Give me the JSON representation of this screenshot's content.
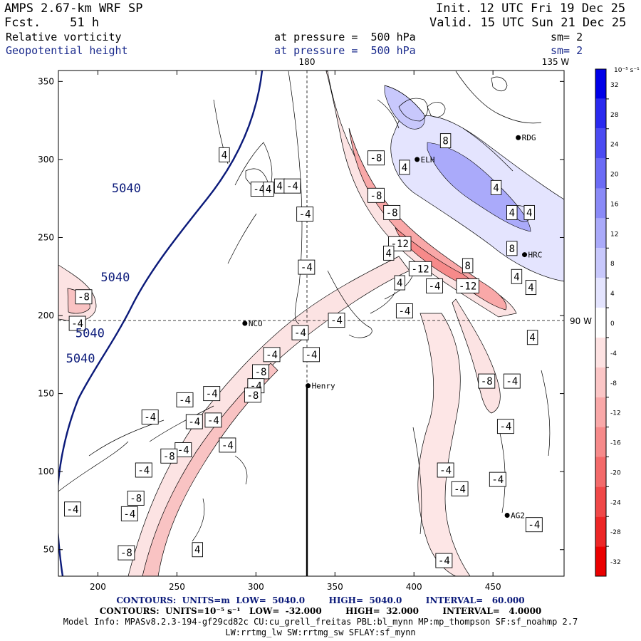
{
  "header": {
    "model": "AMPS 2.67-km WRF SP",
    "forecast": "Fcst.    51 h",
    "init": "Init. 12 UTC Fri 19 Dec 25",
    "valid": "Valid. 15 UTC Sun 21 Dec 25",
    "field1": "Relative vorticity",
    "field2": "Geopotential height",
    "pressure1": "at pressure =  500 hPa",
    "pressure2": "at pressure =  500 hPa",
    "smooth1": "sm= 2",
    "smooth2": "sm= 2"
  },
  "map": {
    "meridian_label": "180",
    "meridian_135_label": "135 W",
    "meridian_90_label": "90 W",
    "x_ticks": [
      200,
      250,
      300,
      350,
      400,
      450
    ],
    "y_ticks": [
      50,
      100,
      150,
      200,
      250,
      300,
      350
    ],
    "x_range": [
      175,
      495
    ],
    "y_range": [
      33,
      357
    ],
    "stations": [
      {
        "name": "RDG",
        "x": 466,
        "y": 314
      },
      {
        "name": "ELH",
        "x": 402,
        "y": 300
      },
      {
        "name": "HRC",
        "x": 470,
        "y": 239
      },
      {
        "name": "NCO",
        "x": 293,
        "y": 195
      },
      {
        "name": "Henry",
        "x": 333,
        "y": 155
      },
      {
        "name": "AG2",
        "x": 459,
        "y": 72
      }
    ],
    "height_labels": [
      {
        "text": "5040",
        "x": 218,
        "y": 279
      },
      {
        "text": "5040",
        "x": 211,
        "y": 222
      },
      {
        "text": "5040",
        "x": 195,
        "y": 186
      },
      {
        "text": "5040",
        "x": 189,
        "y": 170
      }
    ],
    "vort_labels": [
      {
        "t": "4",
        "x": 280,
        "y": 303
      },
      {
        "t": "-4",
        "x": 302,
        "y": 281
      },
      {
        "t": "4",
        "x": 308,
        "y": 281
      },
      {
        "t": "4",
        "x": 315,
        "y": 283
      },
      {
        "t": "-4",
        "x": 323,
        "y": 283
      },
      {
        "t": "-4",
        "x": 331,
        "y": 265
      },
      {
        "t": "-4",
        "x": 332,
        "y": 231
      },
      {
        "t": "-8",
        "x": 191,
        "y": 212
      },
      {
        "t": "-4",
        "x": 187,
        "y": 195
      },
      {
        "t": "-4",
        "x": 328,
        "y": 189
      },
      {
        "t": "-4",
        "x": 335,
        "y": 175
      },
      {
        "t": "-4",
        "x": 310,
        "y": 175
      },
      {
        "t": "-8",
        "x": 303,
        "y": 164
      },
      {
        "t": "-4",
        "x": 300,
        "y": 155
      },
      {
        "t": "-8",
        "x": 298,
        "y": 149
      },
      {
        "t": "-4",
        "x": 272,
        "y": 150
      },
      {
        "t": "-4",
        "x": 255,
        "y": 146
      },
      {
        "t": "-4",
        "x": 233,
        "y": 135
      },
      {
        "t": "-4",
        "x": 261,
        "y": 132
      },
      {
        "t": "-4",
        "x": 273,
        "y": 133
      },
      {
        "t": "-4",
        "x": 282,
        "y": 117
      },
      {
        "t": "-4",
        "x": 254,
        "y": 114
      },
      {
        "t": "-8",
        "x": 245,
        "y": 110
      },
      {
        "t": "-4",
        "x": 229,
        "y": 101
      },
      {
        "t": "-8",
        "x": 224,
        "y": 83
      },
      {
        "t": "-4",
        "x": 220,
        "y": 73
      },
      {
        "t": "-4",
        "x": 184,
        "y": 76
      },
      {
        "t": "-8",
        "x": 218,
        "y": 48
      },
      {
        "t": "4",
        "x": 263,
        "y": 50
      },
      {
        "t": "-4",
        "x": 351,
        "y": 197
      },
      {
        "t": "-8",
        "x": 376,
        "y": 301
      },
      {
        "t": "-8",
        "x": 376,
        "y": 277
      },
      {
        "t": "-8",
        "x": 386,
        "y": 266
      },
      {
        "t": "-12",
        "x": 391,
        "y": 246
      },
      {
        "t": "-12",
        "x": 404,
        "y": 230
      },
      {
        "t": "-4",
        "x": 413,
        "y": 219
      },
      {
        "t": "-12",
        "x": 434,
        "y": 219
      },
      {
        "t": "4",
        "x": 384,
        "y": 240
      },
      {
        "t": "4",
        "x": 391,
        "y": 221
      },
      {
        "t": "-4",
        "x": 394,
        "y": 203
      },
      {
        "t": "4",
        "x": 394,
        "y": 295
      },
      {
        "t": "8",
        "x": 420,
        "y": 312
      },
      {
        "t": "4",
        "x": 452,
        "y": 282
      },
      {
        "t": "4",
        "x": 462,
        "y": 266
      },
      {
        "t": "4",
        "x": 473,
        "y": 266
      },
      {
        "t": "8",
        "x": 462,
        "y": 243
      },
      {
        "t": "8",
        "x": 434,
        "y": 232
      },
      {
        "t": "4",
        "x": 465,
        "y": 225
      },
      {
        "t": "4",
        "x": 474,
        "y": 218
      },
      {
        "t": "4",
        "x": 475,
        "y": 186
      },
      {
        "t": "-4",
        "x": 462,
        "y": 158
      },
      {
        "t": "-8",
        "x": 446,
        "y": 158
      },
      {
        "t": "-4",
        "x": 458,
        "y": 129
      },
      {
        "t": "-4",
        "x": 420,
        "y": 101
      },
      {
        "t": "-4",
        "x": 429,
        "y": 89
      },
      {
        "t": "-4",
        "x": 453,
        "y": 95
      },
      {
        "t": "-4",
        "x": 476,
        "y": 66
      },
      {
        "t": "-4",
        "x": 419,
        "y": 43
      }
    ]
  },
  "colorbar": {
    "unit_label": "10⁻⁵ s⁻¹",
    "ticks": [
      "32",
      "28",
      "24",
      "20",
      "16",
      "12",
      "8",
      "4",
      "0",
      "-4",
      "-8",
      "-12",
      "-16",
      "-20",
      "-24",
      "-28",
      "-32"
    ],
    "colors": [
      "#0000e8",
      "#2a2aef",
      "#4b4bf2",
      "#6b6bf5",
      "#8a8af7",
      "#aaaafa",
      "#c8c8fc",
      "#e4e4fe",
      "#ffffff",
      "#fde2e2",
      "#fbc6c6",
      "#f9a8a8",
      "#f68a8a",
      "#f36a6a",
      "#f04848",
      "#ed2626",
      "#ea0000"
    ]
  },
  "footer": {
    "line1": "CONTOURS:  UNITS=m  LOW=  5040.0        HIGH=  5040.0        INTERVAL=   60.000",
    "line2": "CONTOURS:  UNITS=10⁻⁵ s⁻¹   LOW=  -32.000        HIGH=  32.000        INTERVAL=   4.0000",
    "line3": "Model Info: MPASv8.2.3-194-gf29cd82c CU:cu_grell_freitas PBL:bl_mynn MP:mp_thompson SF:sf_noahmp 2.7",
    "line4": "LW:rrtmg_lw SW:rrtmg_sw SFLAY:sf_mynn"
  }
}
